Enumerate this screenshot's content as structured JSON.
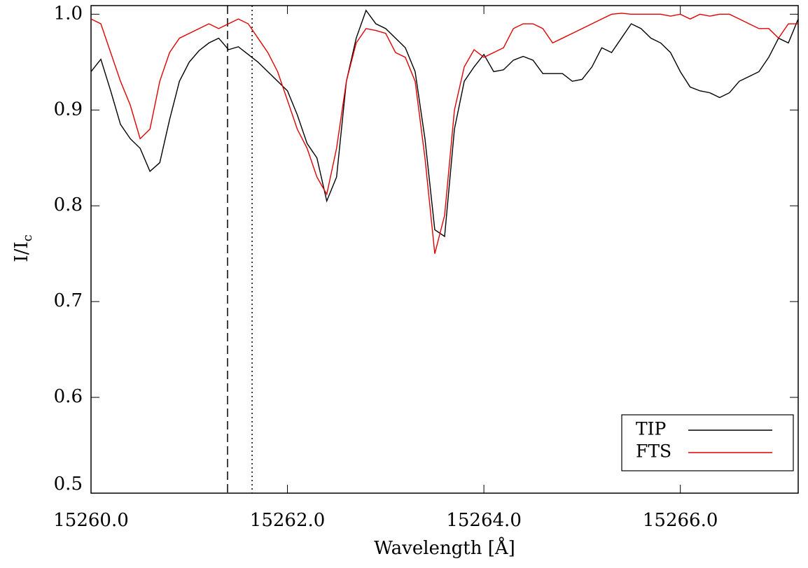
{
  "chart_data": {
    "type": "line",
    "xlabel": "Wavelength [Å]",
    "ylabel": {
      "main": "I/I",
      "sub": "c"
    },
    "xlim": [
      15260,
      15267.2
    ],
    "ylim": [
      0.5,
      1.009
    ],
    "xticks": [
      {
        "value": 15260,
        "label": "15260.0"
      },
      {
        "value": 15262,
        "label": "15262.0"
      },
      {
        "value": 15264,
        "label": "15264.0"
      },
      {
        "value": 15266,
        "label": "15266.0"
      }
    ],
    "yticks": [
      0.5,
      0.6,
      0.7,
      0.8,
      0.9,
      {
        "value": 1,
        "label": "1.0"
      }
    ],
    "legend": "lower right",
    "vlines": [
      {
        "x": 15261.39,
        "style": "dashed"
      },
      {
        "x": 15261.64,
        "style": "dotted"
      }
    ],
    "x": [
      15260.0,
      15260.1,
      15260.2,
      15260.3,
      15260.4,
      15260.5,
      15260.6,
      15260.7,
      15260.8,
      15260.9,
      15261.0,
      15261.1,
      15261.2,
      15261.3,
      15261.4,
      15261.5,
      15261.6,
      15261.7,
      15261.8,
      15261.9,
      15262.0,
      15262.1,
      15262.2,
      15262.3,
      15262.4,
      15262.5,
      15262.6,
      15262.7,
      15262.8,
      15262.9,
      15263.0,
      15263.1,
      15263.2,
      15263.3,
      15263.4,
      15263.5,
      15263.6,
      15263.7,
      15263.8,
      15263.9,
      15264.0,
      15264.1,
      15264.2,
      15264.3,
      15264.4,
      15264.5,
      15264.6,
      15264.7,
      15264.8,
      15264.9,
      15265.0,
      15265.1,
      15265.2,
      15265.3,
      15265.4,
      15265.5,
      15265.6,
      15265.7,
      15265.8,
      15265.9,
      15266.0,
      15266.1,
      15266.2,
      15266.3,
      15266.4,
      15266.5,
      15266.6,
      15266.7,
      15266.8,
      15266.9,
      15267.0,
      15267.1,
      15267.2
    ],
    "series": [
      {
        "name": "TIP",
        "color": "#000000",
        "values": [
          0.94,
          0.953,
          0.92,
          0.885,
          0.87,
          0.86,
          0.836,
          0.845,
          0.89,
          0.93,
          0.95,
          0.962,
          0.97,
          0.975,
          0.963,
          0.966,
          0.958,
          0.95,
          0.94,
          0.93,
          0.92,
          0.895,
          0.865,
          0.85,
          0.805,
          0.83,
          0.93,
          0.975,
          1.004,
          0.99,
          0.985,
          0.975,
          0.965,
          0.94,
          0.87,
          0.775,
          0.768,
          0.88,
          0.93,
          0.945,
          0.958,
          0.94,
          0.942,
          0.952,
          0.956,
          0.952,
          0.938,
          0.938,
          0.938,
          0.93,
          0.932,
          0.945,
          0.965,
          0.96,
          0.975,
          0.99,
          0.985,
          0.975,
          0.97,
          0.96,
          0.94,
          0.924,
          0.92,
          0.918,
          0.913,
          0.918,
          0.93,
          0.935,
          0.94,
          0.955,
          0.975,
          0.97,
          0.995
        ]
      },
      {
        "name": "FTS",
        "color": "#e00000",
        "values": [
          0.995,
          0.99,
          0.96,
          0.93,
          0.905,
          0.87,
          0.88,
          0.93,
          0.96,
          0.975,
          0.98,
          0.985,
          0.99,
          0.985,
          0.99,
          0.995,
          0.99,
          0.975,
          0.96,
          0.94,
          0.91,
          0.88,
          0.86,
          0.83,
          0.812,
          0.86,
          0.93,
          0.97,
          0.985,
          0.983,
          0.98,
          0.96,
          0.955,
          0.93,
          0.85,
          0.75,
          0.79,
          0.9,
          0.945,
          0.963,
          0.955,
          0.96,
          0.965,
          0.985,
          0.99,
          0.99,
          0.985,
          0.97,
          0.975,
          0.98,
          0.985,
          0.99,
          0.995,
          1.0,
          1.001,
          1.0,
          1.0,
          1.0,
          1.0,
          0.998,
          1.0,
          0.995,
          1.0,
          0.998,
          1.0,
          1.0,
          0.995,
          0.99,
          0.985,
          0.985,
          0.975,
          0.99,
          0.99
        ]
      }
    ]
  }
}
